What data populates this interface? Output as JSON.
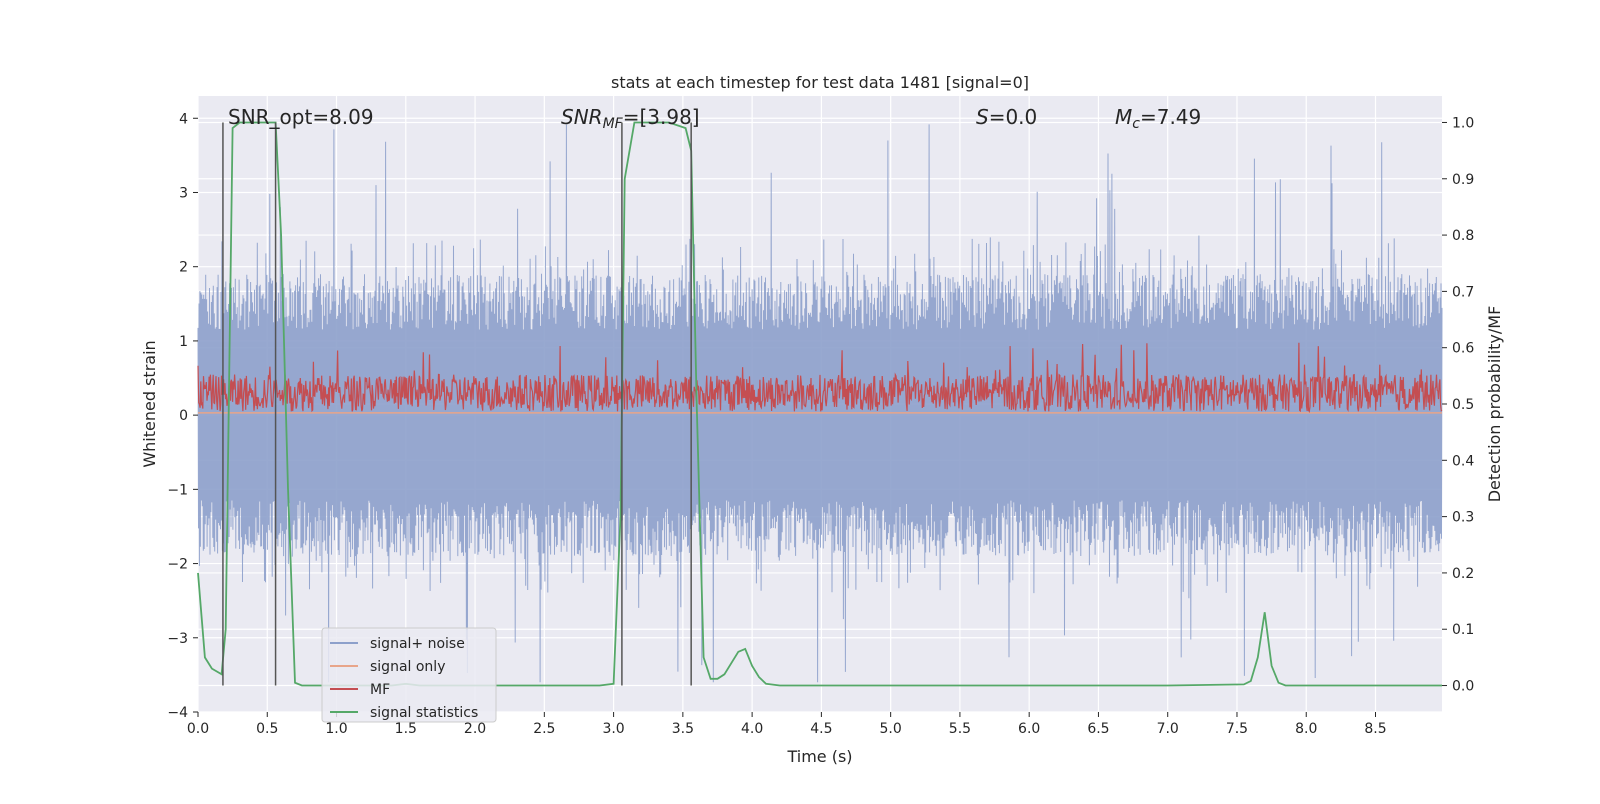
{
  "chart_data": {
    "type": "line",
    "title": "stats at each timestep for test data 1481 [signal=0]",
    "xlabel": "Time (s)",
    "ylabel": "Whitened strain",
    "y2label": "Detection probability/MF",
    "xlim": [
      0,
      8.98
    ],
    "ylim": [
      -4.0,
      4.3
    ],
    "y2lim": [
      -0.047,
      1.047
    ],
    "grid": true,
    "legend_position": "lower-left",
    "x_ticks": [
      "0.0",
      "0.5",
      "1.0",
      "1.5",
      "2.0",
      "2.5",
      "3.0",
      "3.5",
      "4.0",
      "4.5",
      "5.0",
      "5.5",
      "6.0",
      "6.5",
      "7.0",
      "7.5",
      "8.0",
      "8.5"
    ],
    "y_ticks": [
      "−4",
      "−3",
      "−2",
      "−1",
      "0",
      "1",
      "2",
      "3",
      "4"
    ],
    "y2_ticks": [
      "0.0",
      "0.1",
      "0.2",
      "0.3",
      "0.4",
      "0.5",
      "0.6",
      "0.7",
      "0.8",
      "0.9",
      "1.0"
    ],
    "annotations": {
      "snr_opt": "SNR_opt=8.09",
      "snr_mf_main": "SNR",
      "snr_mf_sub": "MF",
      "snr_mf_rest": "=[3.98]",
      "s_main": "S",
      "s_rest": "=0.0",
      "mc_main": "M",
      "mc_sub": "c",
      "mc_rest": "=7.49"
    },
    "series": [
      {
        "name": "signal+ noise",
        "color": "#8da0cb",
        "axis": "left",
        "envelope": {
          "upper_typical": 1.7,
          "lower_typical": -1.7,
          "max": 3.95,
          "min": -3.6
        }
      },
      {
        "name": "signal only",
        "color": "#e8a58a",
        "axis": "left",
        "value": 0.03
      },
      {
        "name": "MF",
        "color": "#c44e52",
        "axis": "left",
        "band": [
          0.0,
          0.6
        ],
        "peak": 1.0
      },
      {
        "name": "signal statistics",
        "color": "#55a868",
        "axis": "right",
        "x": [
          0.0,
          0.05,
          0.1,
          0.17,
          0.2,
          0.25,
          0.3,
          0.35,
          0.4,
          0.45,
          0.5,
          0.56,
          0.6,
          0.65,
          0.7,
          0.75,
          0.8,
          0.9,
          1.0,
          1.2,
          1.4,
          1.5,
          1.6,
          1.8,
          2.0,
          2.5,
          2.9,
          3.0,
          3.05,
          3.08,
          3.15,
          3.2,
          3.3,
          3.4,
          3.52,
          3.56,
          3.6,
          3.65,
          3.7,
          3.75,
          3.8,
          3.9,
          3.95,
          4.0,
          4.05,
          4.1,
          4.2,
          4.4,
          5.0,
          6.0,
          7.0,
          7.55,
          7.6,
          7.65,
          7.7,
          7.75,
          7.8,
          7.85,
          8.0,
          8.5,
          8.98
        ],
        "y": [
          0.2,
          0.05,
          0.03,
          0.02,
          0.1,
          0.99,
          1.0,
          1.0,
          1.0,
          1.0,
          1.0,
          1.0,
          0.8,
          0.35,
          0.005,
          0.0,
          0.0,
          0.0,
          0.0,
          0.0,
          0.0,
          0.003,
          0.0,
          0.0,
          0.0,
          0.0,
          0.0,
          0.003,
          0.3,
          0.9,
          1.0,
          1.0,
          1.0,
          1.0,
          0.99,
          0.95,
          0.5,
          0.05,
          0.012,
          0.012,
          0.02,
          0.06,
          0.065,
          0.035,
          0.015,
          0.003,
          0.0,
          0.0,
          0.0,
          0.0,
          0.0,
          0.002,
          0.008,
          0.05,
          0.13,
          0.035,
          0.005,
          0.0,
          0.0,
          0.0,
          0.0
        ]
      }
    ],
    "vertical_markers": [
      0.18,
      0.56,
      3.06,
      3.56
    ]
  }
}
